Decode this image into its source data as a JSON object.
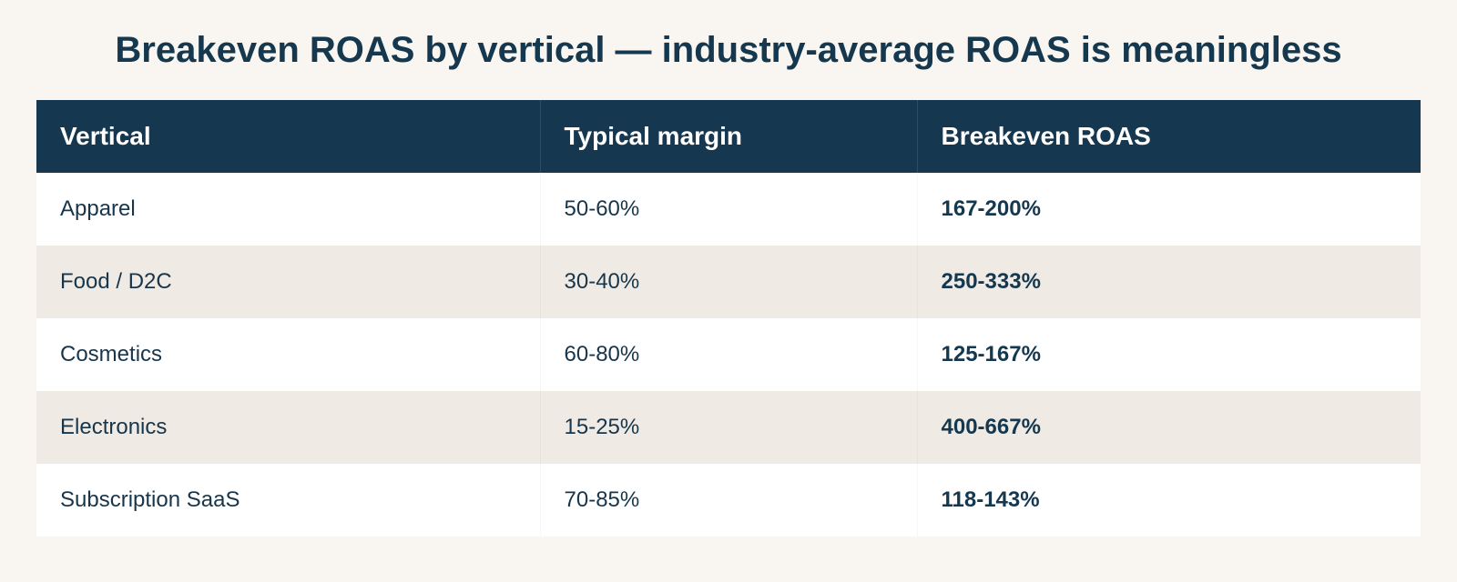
{
  "title": "Breakeven ROAS by vertical — industry-average ROAS is meaningless",
  "table": {
    "headers": [
      "Vertical",
      "Typical margin",
      "Breakeven ROAS"
    ],
    "rows": [
      {
        "vertical": "Apparel",
        "margin": "50-60%",
        "roas": "167-200%"
      },
      {
        "vertical": "Food / D2C",
        "margin": "30-40%",
        "roas": "250-333%"
      },
      {
        "vertical": "Cosmetics",
        "margin": "60-80%",
        "roas": "125-167%"
      },
      {
        "vertical": "Electronics",
        "margin": "15-25%",
        "roas": "400-667%"
      },
      {
        "vertical": "Subscription SaaS",
        "margin": "70-85%",
        "roas": "118-143%"
      }
    ]
  },
  "colors": {
    "background": "#f9f6f2",
    "header_bg": "#15374f",
    "row_alt": "#efebe4",
    "text": "#14364d"
  }
}
